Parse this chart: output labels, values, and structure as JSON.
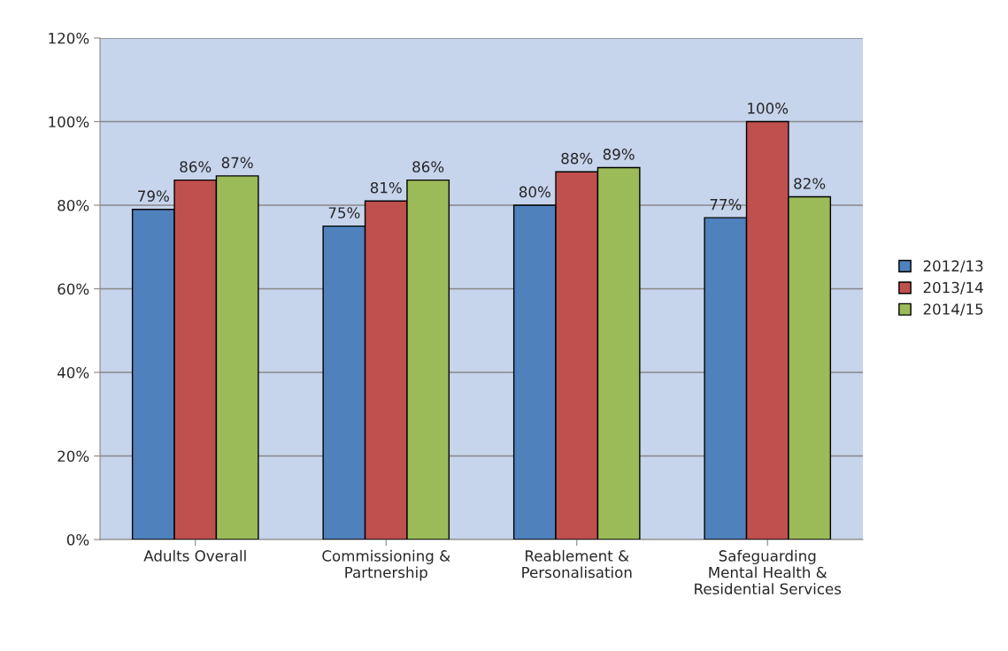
{
  "chart_data": {
    "type": "bar",
    "categories": [
      "Adults Overall",
      "Commissioning &\nPartnership",
      "Reablement &\nPersonalisation",
      "Safeguarding\nMental Health &\nResidential Services"
    ],
    "series": [
      {
        "name": "2012/13",
        "color": "#4f81bd",
        "values": [
          79,
          75,
          80,
          77
        ],
        "value_labels": [
          "79%",
          "75%",
          "80%",
          "77%"
        ]
      },
      {
        "name": "2013/14",
        "color": "#c0504d",
        "values": [
          86,
          81,
          88,
          100
        ],
        "value_labels": [
          "86%",
          "81%",
          "88%",
          "100%"
        ]
      },
      {
        "name": "2014/15",
        "color": "#9bbb59",
        "values": [
          87,
          86,
          89,
          82
        ],
        "value_labels": [
          "87%",
          "86%",
          "89%",
          "82%"
        ]
      }
    ],
    "ylim": [
      0,
      120
    ],
    "yticks": [
      {
        "value": 0,
        "label": "0%"
      },
      {
        "value": 20,
        "label": "20%"
      },
      {
        "value": 40,
        "label": "40%"
      },
      {
        "value": 60,
        "label": "60%"
      },
      {
        "value": 80,
        "label": "80%"
      },
      {
        "value": 100,
        "label": "100%"
      },
      {
        "value": 120,
        "label": "120%"
      }
    ],
    "grid": "y",
    "legend": "right"
  }
}
